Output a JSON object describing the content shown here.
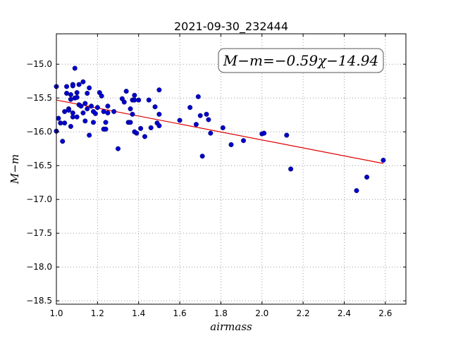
{
  "chart_data": {
    "type": "scatter",
    "title": "2021-09-30_232444",
    "xlabel": "airmass",
    "ylabel": "M−m",
    "xlim": [
      1.0,
      2.7
    ],
    "ylim": [
      -18.55,
      -14.55
    ],
    "xticks": [
      "1.0",
      "1.2",
      "1.4",
      "1.6",
      "1.8",
      "2.0",
      "2.2",
      "2.4",
      "2.6"
    ],
    "xtick_values": [
      1.0,
      1.2,
      1.4,
      1.6,
      1.8,
      2.0,
      2.2,
      2.4,
      2.6
    ],
    "yticks": [
      "−15.0",
      "−15.5",
      "−16.0",
      "−16.5",
      "−17.0",
      "−17.5",
      "−18.0",
      "−18.5"
    ],
    "ytick_values": [
      -15.0,
      -15.5,
      -16.0,
      -16.5,
      -17.0,
      -17.5,
      -18.0,
      -18.5
    ],
    "grid": true,
    "annotation": "M−m=−0.59χ−14.94",
    "point_color": "#0000cc",
    "fit_color": "#dd0000",
    "fit": {
      "slope": -0.59,
      "intercept": -14.94,
      "x_range": [
        1.0,
        2.59
      ]
    },
    "points": [
      [
        1.0,
        -15.33
      ],
      [
        1.01,
        -15.8
      ],
      [
        1.0,
        -15.99
      ],
      [
        1.02,
        -15.87
      ],
      [
        1.03,
        -16.14
      ],
      [
        1.04,
        -15.87
      ],
      [
        1.04,
        -15.7
      ],
      [
        1.05,
        -15.43
      ],
      [
        1.05,
        -15.33
      ],
      [
        1.06,
        -15.66
      ],
      [
        1.06,
        -15.68
      ],
      [
        1.07,
        -15.52
      ],
      [
        1.07,
        -15.92
      ],
      [
        1.07,
        -15.45
      ],
      [
        1.08,
        -15.3
      ],
      [
        1.08,
        -15.32
      ],
      [
        1.08,
        -15.72
      ],
      [
        1.08,
        -15.78
      ],
      [
        1.09,
        -15.06
      ],
      [
        1.09,
        -15.5
      ],
      [
        1.1,
        -15.42
      ],
      [
        1.1,
        -15.49
      ],
      [
        1.1,
        -15.78
      ],
      [
        1.11,
        -15.6
      ],
      [
        1.11,
        -15.3
      ],
      [
        1.12,
        -15.62
      ],
      [
        1.13,
        -15.26
      ],
      [
        1.13,
        -15.72
      ],
      [
        1.14,
        -15.84
      ],
      [
        1.14,
        -15.58
      ],
      [
        1.15,
        -15.43
      ],
      [
        1.15,
        -15.66
      ],
      [
        1.16,
        -16.05
      ],
      [
        1.16,
        -15.35
      ],
      [
        1.17,
        -15.62
      ],
      [
        1.18,
        -15.7
      ],
      [
        1.18,
        -15.86
      ],
      [
        1.19,
        -15.73
      ],
      [
        1.2,
        -15.64
      ],
      [
        1.21,
        -15.42
      ],
      [
        1.22,
        -15.47
      ],
      [
        1.23,
        -15.7
      ],
      [
        1.23,
        -15.96
      ],
      [
        1.24,
        -15.96
      ],
      [
        1.24,
        -15.86
      ],
      [
        1.25,
        -15.62
      ],
      [
        1.25,
        -15.72
      ],
      [
        1.28,
        -15.7
      ],
      [
        1.3,
        -16.25
      ],
      [
        1.32,
        -15.51
      ],
      [
        1.33,
        -15.56
      ],
      [
        1.34,
        -15.4
      ],
      [
        1.35,
        -15.86
      ],
      [
        1.36,
        -15.86
      ],
      [
        1.36,
        -15.66
      ],
      [
        1.37,
        -15.74
      ],
      [
        1.37,
        -15.53
      ],
      [
        1.38,
        -15.46
      ],
      [
        1.38,
        -16.0
      ],
      [
        1.38,
        -15.53
      ],
      [
        1.39,
        -16.02
      ],
      [
        1.4,
        -15.53
      ],
      [
        1.41,
        -15.95
      ],
      [
        1.43,
        -16.07
      ],
      [
        1.45,
        -15.53
      ],
      [
        1.46,
        -15.94
      ],
      [
        1.48,
        -15.63
      ],
      [
        1.49,
        -15.87
      ],
      [
        1.5,
        -15.91
      ],
      [
        1.5,
        -15.74
      ],
      [
        1.5,
        -15.38
      ],
      [
        1.6,
        -15.83
      ],
      [
        1.65,
        -15.64
      ],
      [
        1.68,
        -15.89
      ],
      [
        1.69,
        -15.48
      ],
      [
        1.7,
        -15.76
      ],
      [
        1.71,
        -16.36
      ],
      [
        1.73,
        -15.74
      ],
      [
        1.74,
        -15.82
      ],
      [
        1.75,
        -16.02
      ],
      [
        1.81,
        -15.94
      ],
      [
        1.85,
        -16.19
      ],
      [
        1.91,
        -16.13
      ],
      [
        2.0,
        -16.03
      ],
      [
        2.01,
        -16.02
      ],
      [
        2.12,
        -16.05
      ],
      [
        2.14,
        -16.55
      ],
      [
        2.46,
        -16.87
      ],
      [
        2.51,
        -16.67
      ],
      [
        2.59,
        -16.42
      ]
    ]
  }
}
